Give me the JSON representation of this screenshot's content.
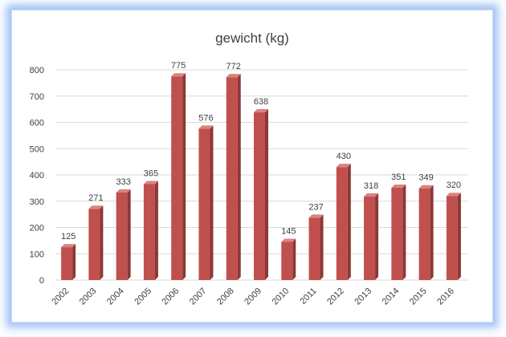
{
  "chart_data": {
    "type": "bar",
    "title": "gewicht (kg)",
    "xlabel": "",
    "ylabel": "",
    "categories": [
      "2002",
      "2003",
      "2004",
      "2005",
      "2006",
      "2007",
      "2008",
      "2009",
      "2010",
      "2011",
      "2012",
      "2013",
      "2014",
      "2015",
      "2016"
    ],
    "values": [
      125,
      271,
      333,
      365,
      775,
      576,
      772,
      638,
      145,
      237,
      430,
      318,
      351,
      349,
      320
    ],
    "ylim": [
      0,
      800
    ],
    "yticks": [
      0,
      100,
      200,
      300,
      400,
      500,
      600,
      700,
      800
    ],
    "grid": true,
    "data_labels": true,
    "legend": false,
    "colors": {
      "bar_front": "#c0504d",
      "bar_side": "#8c3836",
      "bar_top": "#d9837f"
    }
  }
}
